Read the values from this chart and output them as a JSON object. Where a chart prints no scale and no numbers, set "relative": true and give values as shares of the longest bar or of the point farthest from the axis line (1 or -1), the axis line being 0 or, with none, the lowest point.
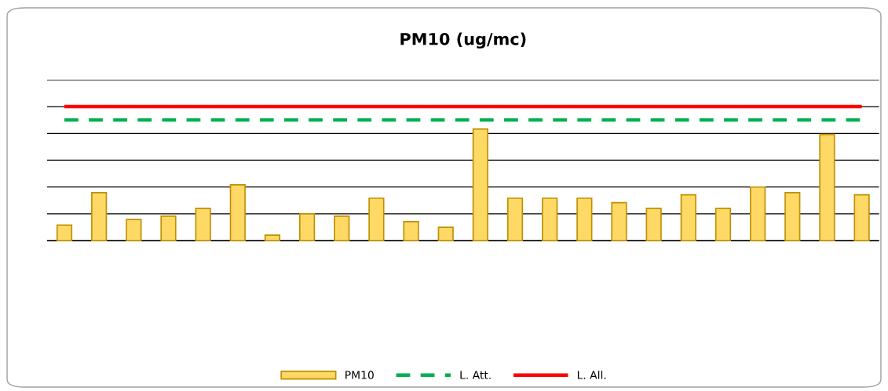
{
  "chart_data": {
    "type": "bar",
    "title": "PM10 (ug/mc)",
    "relative": true,
    "grid": "y",
    "legend": "bottom",
    "tick_labels": false,
    "categories": [
      null,
      null,
      null,
      null,
      null,
      null,
      null,
      null,
      null,
      null,
      null,
      null,
      null,
      null,
      null,
      null,
      null,
      null,
      null,
      null,
      null,
      null,
      null,
      null
    ],
    "series": [
      {
        "name": "PM10",
        "color": "#ffd966",
        "values": [
          0.14,
          0.43,
          0.19,
          0.22,
          0.29,
          0.5,
          0.05,
          0.24,
          0.22,
          0.38,
          0.17,
          0.12,
          1,
          0.38,
          0.38,
          0.38,
          0.34,
          0.29,
          0.41,
          0.29,
          0.48,
          0.43,
          0.95,
          0.41
        ]
      }
    ],
    "ref_lines": [
      {
        "axis": "y",
        "value": 1.08,
        "label": "L. Att.",
        "color": "#00b050",
        "line_style": "dashed"
      },
      {
        "axis": "y",
        "value": 1.2,
        "label": "L. All.",
        "color": "#ff0000",
        "line_style": "solid"
      }
    ]
  }
}
